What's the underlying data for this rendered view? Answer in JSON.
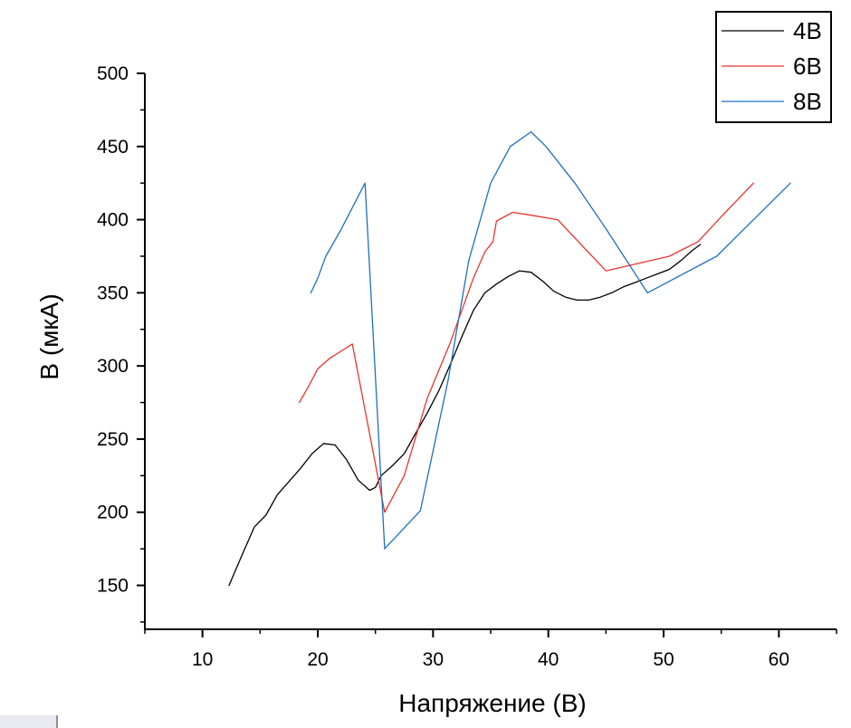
{
  "chart_data": {
    "type": "line",
    "xlabel": "Напряжение (В)",
    "ylabel": "В (мкА)",
    "xlim": [
      5,
      65
    ],
    "ylim": [
      120,
      500
    ],
    "x_ticks": [
      10,
      20,
      30,
      40,
      50,
      60
    ],
    "y_ticks": [
      150,
      200,
      250,
      300,
      350,
      400,
      450,
      500
    ],
    "grid": false,
    "legend_position": "top-right",
    "series": [
      {
        "name": "4В",
        "color": "#000000",
        "points": [
          [
            12.3,
            150
          ],
          [
            13.5,
            172
          ],
          [
            14.5,
            190
          ],
          [
            15.5,
            198
          ],
          [
            16.5,
            212
          ],
          [
            17.5,
            221
          ],
          [
            18.5,
            230
          ],
          [
            19.5,
            240
          ],
          [
            20.5,
            247
          ],
          [
            21.5,
            246
          ],
          [
            22.5,
            236
          ],
          [
            23.5,
            222
          ],
          [
            24.5,
            215
          ],
          [
            25.0,
            217
          ],
          [
            25.5,
            225
          ],
          [
            26.5,
            232
          ],
          [
            27.5,
            240
          ],
          [
            28.5,
            254
          ],
          [
            29.5,
            268
          ],
          [
            30.5,
            283
          ],
          [
            31.5,
            301
          ],
          [
            32.5,
            320
          ],
          [
            33.5,
            338
          ],
          [
            34.5,
            350
          ],
          [
            35.5,
            356
          ],
          [
            36.5,
            361
          ],
          [
            37.5,
            365
          ],
          [
            38.5,
            364
          ],
          [
            39.5,
            358
          ],
          [
            40.5,
            351
          ],
          [
            41.5,
            347
          ],
          [
            42.5,
            345
          ],
          [
            43.5,
            345
          ],
          [
            44.5,
            347
          ],
          [
            45.5,
            350
          ],
          [
            46.5,
            354
          ],
          [
            47.5,
            357
          ],
          [
            48.5,
            360
          ],
          [
            49.5,
            363
          ],
          [
            50.5,
            366
          ],
          [
            51.5,
            372
          ],
          [
            52.5,
            379
          ],
          [
            53.2,
            383
          ]
        ]
      },
      {
        "name": "6В",
        "color": "#e8342c",
        "points": [
          [
            18.4,
            275
          ],
          [
            19.2,
            286
          ],
          [
            20.0,
            298
          ],
          [
            21.0,
            305
          ],
          [
            22.0,
            310
          ],
          [
            23.0,
            315
          ],
          [
            25.8,
            200
          ],
          [
            27.5,
            225
          ],
          [
            29.5,
            278
          ],
          [
            31.5,
            316
          ],
          [
            33.5,
            360
          ],
          [
            34.5,
            378
          ],
          [
            35.2,
            385
          ],
          [
            35.5,
            399
          ],
          [
            36.9,
            405
          ],
          [
            38.5,
            403
          ],
          [
            40.8,
            400
          ],
          [
            45.0,
            365
          ],
          [
            50.5,
            375
          ],
          [
            53.0,
            385
          ],
          [
            55.0,
            402
          ],
          [
            57.8,
            425
          ]
        ]
      },
      {
        "name": "8В",
        "color": "#1f6fbf",
        "points": [
          [
            19.4,
            350
          ],
          [
            20.0,
            360
          ],
          [
            20.7,
            375
          ],
          [
            22.0,
            393
          ],
          [
            24.1,
            425
          ],
          [
            25.8,
            175
          ],
          [
            28.9,
            201
          ],
          [
            31.3,
            290
          ],
          [
            33.1,
            372
          ],
          [
            35.0,
            425
          ],
          [
            36.7,
            450
          ],
          [
            38.5,
            460
          ],
          [
            39.8,
            450
          ],
          [
            42.3,
            425
          ],
          [
            44.9,
            395
          ],
          [
            48.6,
            350
          ],
          [
            54.6,
            375
          ],
          [
            61.0,
            425
          ]
        ]
      }
    ]
  }
}
